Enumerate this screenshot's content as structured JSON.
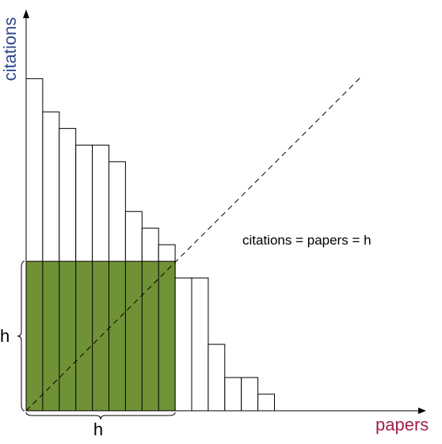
{
  "chart_data": {
    "type": "bar",
    "title": "",
    "xlabel": "papers",
    "ylabel": "citations",
    "values": [
      20,
      18,
      17,
      16,
      16,
      15,
      12,
      11,
      10,
      8,
      8,
      4,
      2,
      2,
      1
    ],
    "h": 9,
    "h_label": "h",
    "annotation": "citations = papers = h",
    "colors": {
      "axis_label_y": "#2e4a8c",
      "axis_label_x": "#a0204c",
      "highlight_fill": "#6f9236",
      "bar_stroke": "#000000",
      "bar_fill": "#ffffff"
    }
  }
}
